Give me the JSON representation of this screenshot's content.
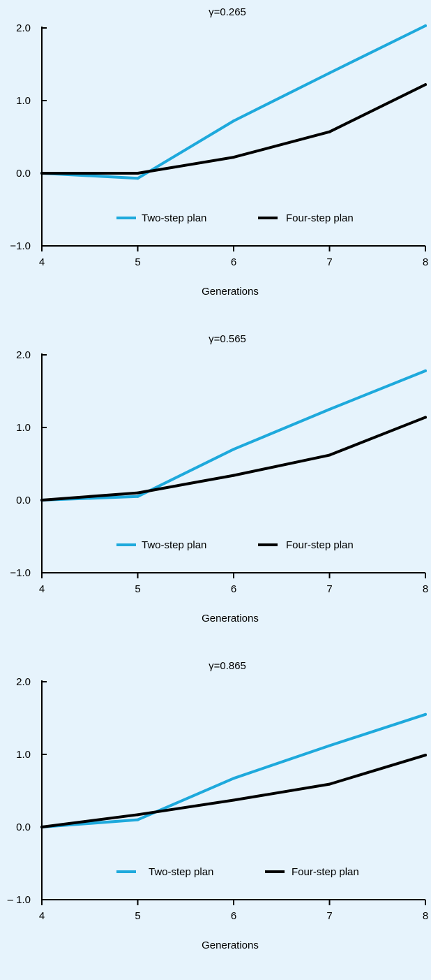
{
  "chart_data": [
    {
      "type": "line",
      "title": "γ=0.265",
      "xlabel": "Generations",
      "ylabel": "",
      "x": [
        4,
        5,
        6,
        7,
        8
      ],
      "xlim": [
        4,
        8
      ],
      "ylim": [
        -1.0,
        2.0
      ],
      "xticks": [
        "4",
        "5",
        "6",
        "7",
        "8"
      ],
      "yticks": [
        "2.0",
        "1.0",
        "0.0",
        "−1.0"
      ],
      "grid": false,
      "legend_position": "inside-lower-center",
      "series": [
        {
          "name": "Two-step plan",
          "color": "#1ea9dc",
          "values": [
            0.0,
            -0.07,
            0.72,
            1.38,
            2.03
          ]
        },
        {
          "name": "Four-step plan",
          "color": "#000000",
          "values": [
            0.0,
            0.0,
            0.22,
            0.57,
            1.22
          ]
        }
      ]
    },
    {
      "type": "line",
      "title": "γ=0.565",
      "xlabel": "Generations",
      "ylabel": "",
      "x": [
        4,
        5,
        6,
        7,
        8
      ],
      "xlim": [
        4,
        8
      ],
      "ylim": [
        -1.0,
        2.0
      ],
      "xticks": [
        "4",
        "5",
        "6",
        "7",
        "8"
      ],
      "yticks": [
        "2.0",
        "1.0",
        "0.0",
        "−1.0"
      ],
      "grid": false,
      "legend_position": "inside-lower-center",
      "series": [
        {
          "name": "Two-step plan",
          "color": "#1ea9dc",
          "values": [
            0.0,
            0.05,
            0.7,
            1.25,
            1.78
          ]
        },
        {
          "name": "Four-step plan",
          "color": "#000000",
          "values": [
            0.0,
            0.1,
            0.34,
            0.62,
            1.14
          ]
        }
      ]
    },
    {
      "type": "line",
      "title": "γ=0.865",
      "xlabel": "Generations",
      "ylabel": "",
      "x": [
        4,
        5,
        6,
        7,
        8
      ],
      "xlim": [
        4,
        8
      ],
      "ylim": [
        -1.0,
        2.0
      ],
      "xticks": [
        "4",
        "5",
        "6",
        "7",
        "8"
      ],
      "yticks": [
        "2.0",
        "1.0",
        "0.0",
        "– 1.0"
      ],
      "grid": false,
      "legend_position": "inside-lower-center",
      "series": [
        {
          "name": "Two-step plan",
          "color": "#1ea9dc",
          "values": [
            0.0,
            0.1,
            0.67,
            1.12,
            1.55
          ]
        },
        {
          "name": "Four-step plan",
          "color": "#000000",
          "values": [
            0.0,
            0.17,
            0.37,
            0.59,
            0.99
          ]
        }
      ]
    }
  ]
}
